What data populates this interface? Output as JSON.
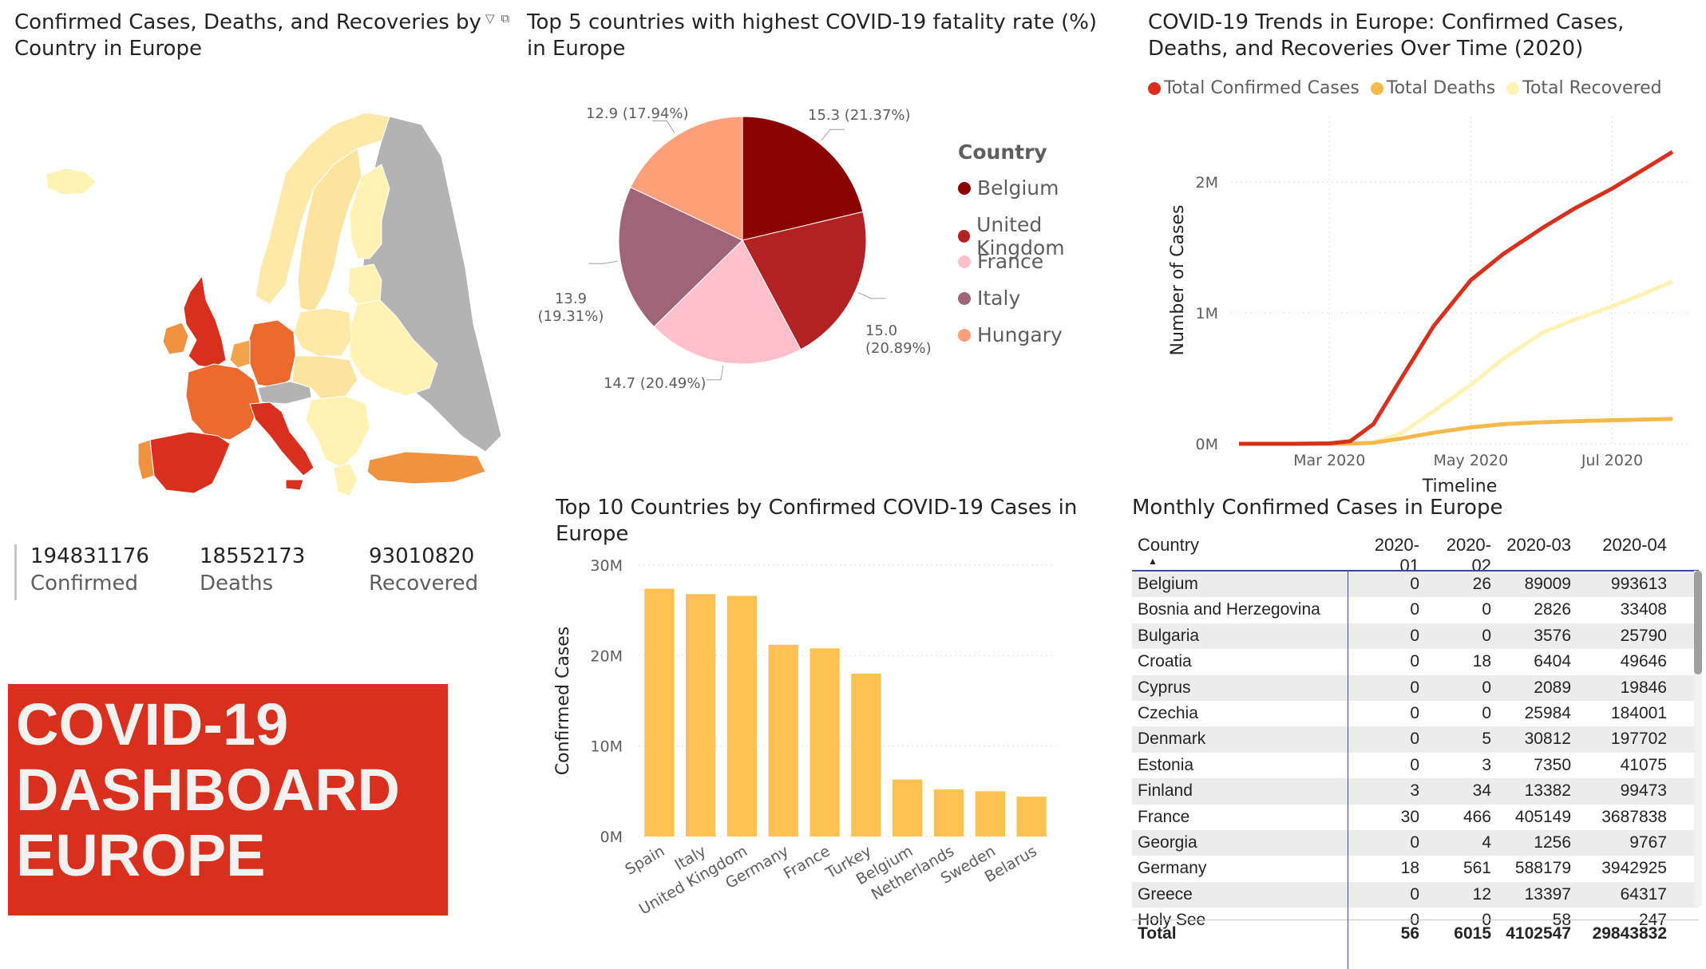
{
  "map": {
    "title": "Confirmed Cases, Deaths, and Recoveries by Country in Europe",
    "icons": [
      "filter-icon",
      "focus-mode-icon"
    ]
  },
  "cards": [
    {
      "value": "194831176",
      "label": "Confirmed"
    },
    {
      "value": "18552173",
      "label": "Deaths"
    },
    {
      "value": "93010820",
      "label": "Recovered"
    }
  ],
  "banner": {
    "line1": "COVID-19",
    "line2": "DASHBOARD",
    "line3": "EUROPE",
    "color": "#d9301e"
  },
  "pie": {
    "title": "Top 5 countries with highest COVID-19 fatality rate (%) in Europe",
    "legend_title": "Country",
    "labels": [
      "15.3 (21.37%)",
      "15.0 (20.89%)",
      "14.7 (20.49%)",
      "13.9 (19.31%)",
      "12.9 (17.94%)"
    ]
  },
  "line": {
    "title": "COVID-19 Trends in Europe: Confirmed Cases, Deaths, and Recoveries Over Time (2020)",
    "xlabel": "Timeline",
    "ylabel": "Number of Cases"
  },
  "bar": {
    "title": "Top 10 Countries by Confirmed COVID-19 Cases in Europe",
    "ylabel": "Confirmed Cases"
  },
  "table": {
    "title": "Monthly Confirmed Cases in Europe",
    "headers": [
      "Country",
      "2020-01",
      "2020-02",
      "2020-03",
      "2020-04"
    ],
    "rows": [
      [
        "Belgium",
        "0",
        "26",
        "89009",
        "993613"
      ],
      [
        "Bosnia and Herzegovina",
        "0",
        "0",
        "2826",
        "33408"
      ],
      [
        "Bulgaria",
        "0",
        "0",
        "3576",
        "25790"
      ],
      [
        "Croatia",
        "0",
        "18",
        "6404",
        "49646"
      ],
      [
        "Cyprus",
        "0",
        "0",
        "2089",
        "19846"
      ],
      [
        "Czechia",
        "0",
        "0",
        "25984",
        "184001"
      ],
      [
        "Denmark",
        "0",
        "5",
        "30812",
        "197702"
      ],
      [
        "Estonia",
        "0",
        "3",
        "7350",
        "41075"
      ],
      [
        "Finland",
        "3",
        "34",
        "13382",
        "99473"
      ],
      [
        "France",
        "30",
        "466",
        "405149",
        "3687838"
      ],
      [
        "Georgia",
        "0",
        "4",
        "1256",
        "9767"
      ],
      [
        "Germany",
        "18",
        "561",
        "588179",
        "3942925"
      ],
      [
        "Greece",
        "0",
        "12",
        "13397",
        "64317"
      ],
      [
        "Holy See",
        "0",
        "0",
        "58",
        "247"
      ]
    ],
    "total": [
      "Total",
      "56",
      "6015",
      "4102547",
      "29843832"
    ]
  },
  "chart_data": [
    {
      "type": "pie",
      "title": "Top 5 countries with highest COVID-19 fatality rate (%) in Europe",
      "legend_title": "Country",
      "categories": [
        "Belgium",
        "United Kingdom",
        "France",
        "Italy",
        "Hungary"
      ],
      "values": [
        15.3,
        15.0,
        14.7,
        13.9,
        12.9
      ],
      "percentages": [
        21.37,
        20.89,
        20.49,
        19.31,
        17.94
      ],
      "colors": [
        "#8b0000",
        "#b22222",
        "#ffc0cb",
        "#a06478",
        "#ffa07a"
      ],
      "legend_position": "right"
    },
    {
      "type": "line",
      "title": "COVID-19 Trends in Europe: Confirmed Cases, Deaths, and Recoveries Over Time (2020)",
      "xlabel": "Timeline",
      "ylabel": "Number of Cases",
      "x": [
        "2020-01-22",
        "2020-02-15",
        "2020-03-01",
        "2020-03-10",
        "2020-03-20",
        "2020-04-01",
        "2020-04-15",
        "2020-05-01",
        "2020-05-15",
        "2020-06-01",
        "2020-06-15",
        "2020-07-01",
        "2020-07-15",
        "2020-07-27"
      ],
      "x_ticks": [
        "Mar 2020",
        "May 2020",
        "Jul 2020"
      ],
      "y_ticks": [
        "0M",
        "1M",
        "2M"
      ],
      "ylim": [
        0,
        2500000
      ],
      "series": [
        {
          "name": "Total Confirmed Cases",
          "color": "#d9301e",
          "values": [
            0,
            50,
            3000,
            20000,
            150000,
            500000,
            900000,
            1250000,
            1450000,
            1650000,
            1800000,
            1950000,
            2100000,
            2230000
          ]
        },
        {
          "name": "Total Deaths",
          "color": "#f7b84b",
          "values": [
            0,
            0,
            50,
            500,
            8000,
            40000,
            85000,
            125000,
            150000,
            165000,
            172000,
            180000,
            185000,
            190000
          ]
        },
        {
          "name": "Total Recovered",
          "color": "#fff2b3",
          "values": [
            0,
            0,
            100,
            1000,
            8000,
            80000,
            250000,
            450000,
            650000,
            850000,
            950000,
            1050000,
            1150000,
            1240000
          ]
        }
      ],
      "legend_position": "top-left",
      "grid": true
    },
    {
      "type": "bar",
      "title": "Top 10 Countries by Confirmed COVID-19 Cases in Europe",
      "ylabel": "Confirmed Cases",
      "categories": [
        "Spain",
        "Italy",
        "United Kingdom",
        "Germany",
        "France",
        "Turkey",
        "Belgium",
        "Netherlands",
        "Sweden",
        "Belarus"
      ],
      "values": [
        27400000,
        26800000,
        26600000,
        21200000,
        20800000,
        18000000,
        6300000,
        5200000,
        5000000,
        4400000
      ],
      "y_ticks": [
        "0M",
        "10M",
        "20M",
        "30M"
      ],
      "ylim": [
        0,
        30000000
      ],
      "color": "#fdc152",
      "grid": true
    }
  ]
}
